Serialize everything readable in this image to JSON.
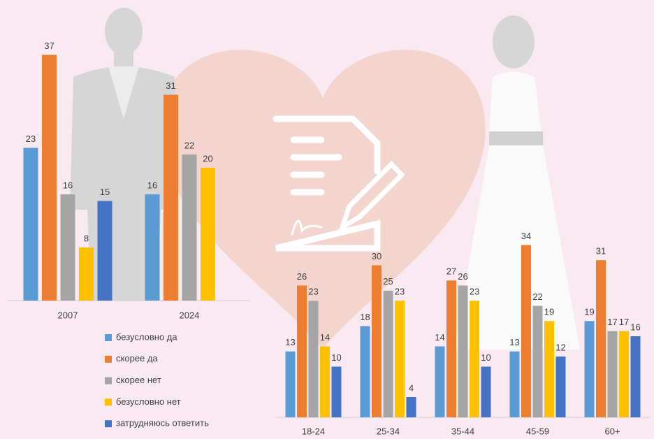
{
  "chart_data": [
    {
      "type": "bar",
      "categories": [
        "2007",
        "2024"
      ],
      "series": [
        {
          "name": "безусловно да",
          "color": "#5b9bd5",
          "values": [
            23,
            16
          ]
        },
        {
          "name": "скорее да",
          "color": "#ed7d31",
          "values": [
            37,
            31
          ]
        },
        {
          "name": "скорее нет",
          "color": "#a5a5a5",
          "values": [
            16,
            22
          ]
        },
        {
          "name": "безусловно нет",
          "color": "#ffc000",
          "values": [
            8,
            20
          ]
        },
        {
          "name": "затрудняюсь ответить",
          "color": "#4472c4",
          "values": [
            15,
            null
          ]
        }
      ],
      "ylim": [
        0,
        40
      ]
    },
    {
      "type": "bar",
      "categories": [
        "18-24",
        "25-34",
        "35-44",
        "45-59",
        "60+"
      ],
      "series": [
        {
          "color": "#5b9bd5",
          "values": [
            13,
            18,
            14,
            13,
            19
          ]
        },
        {
          "color": "#ed7d31",
          "values": [
            26,
            30,
            27,
            34,
            31
          ]
        },
        {
          "color": "#a5a5a5",
          "values": [
            23,
            25,
            26,
            22,
            17
          ]
        },
        {
          "color": "#ffc000",
          "values": [
            14,
            23,
            23,
            19,
            17
          ]
        },
        {
          "color": "#4472c4",
          "values": [
            10,
            4,
            10,
            12,
            16
          ]
        }
      ],
      "ylim": [
        0,
        40
      ]
    }
  ]
}
